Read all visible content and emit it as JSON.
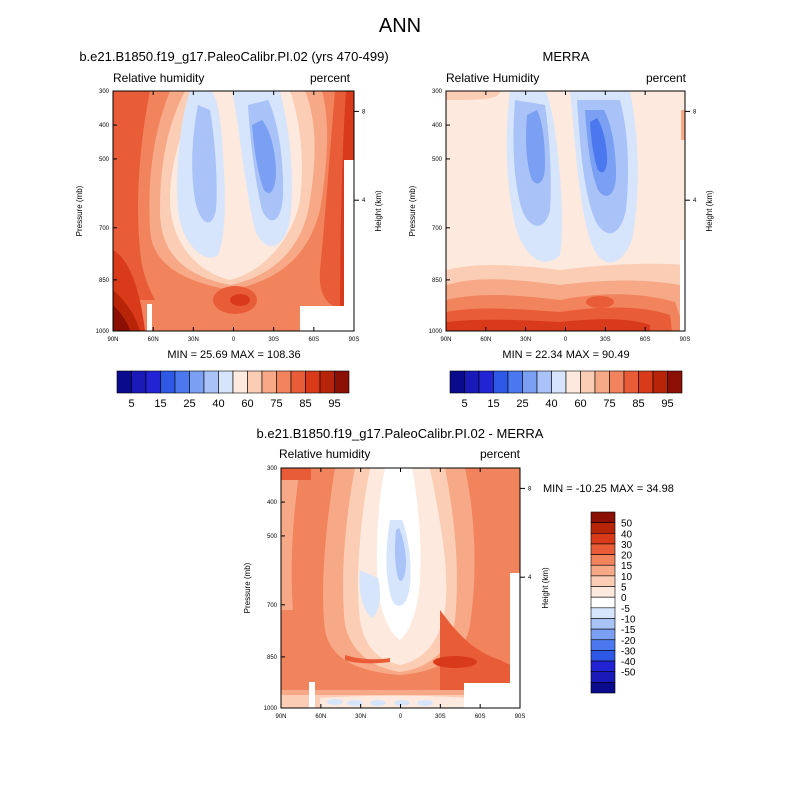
{
  "page": {
    "title": "ANN"
  },
  "colors": {
    "rh_palette": [
      "#0a0a8c",
      "#1a1ab8",
      "#2323d6",
      "#2e58e6",
      "#4b78ee",
      "#7b9ff2",
      "#a9c2f7",
      "#d6e5fb",
      "#fde9dd",
      "#fbcdb4",
      "#f7a886",
      "#f1835d",
      "#e85d38",
      "#d83a1a",
      "#b82407",
      "#8c0f05"
    ],
    "diff_palette": [
      "#0a0a8c",
      "#1a1ab8",
      "#2323d6",
      "#2e58e6",
      "#4b78ee",
      "#7b9ff2",
      "#a9c2f7",
      "#d6e5fb",
      "#ffffff",
      "#fde9dd",
      "#fbcdb4",
      "#f7a886",
      "#f1835d",
      "#e85d38",
      "#d83a1a",
      "#b82407",
      "#8c0f05"
    ]
  },
  "chart_data": [
    {
      "type": "heatmap",
      "title": "b.e21.B1850.f19_g17.PaleoCalibr.PI.02 (yrs 470-499)",
      "left_string": "Relative humidity",
      "right_string": "percent",
      "ylabel": "Pressure (mb)",
      "y2label": "Height (km)",
      "x_ticks": [
        "90N",
        "60N",
        "30N",
        "0",
        "30S",
        "60S",
        "90S"
      ],
      "y_ticks": [
        "300",
        "400",
        "500",
        "700",
        "850",
        "1000"
      ],
      "y2_ticks": [
        "8",
        "4"
      ],
      "stats": "MIN =  25.69  MAX = 108.36",
      "colorbar_labels": [
        "5",
        "15",
        "25",
        "40",
        "60",
        "75",
        "85",
        "95"
      ],
      "min": 25.69,
      "max": 108.36
    },
    {
      "type": "heatmap",
      "title": "MERRA",
      "left_string": "Relative Humidity",
      "right_string": "percent",
      "ylabel": "Pressure (mb)",
      "y2label": "Height (km)",
      "x_ticks": [
        "90N",
        "60N",
        "30N",
        "0",
        "30S",
        "60S",
        "90S"
      ],
      "y_ticks": [
        "300",
        "400",
        "500",
        "700",
        "850",
        "1000"
      ],
      "y2_ticks": [
        "8",
        "4"
      ],
      "stats": "MIN =  22.34  MAX =  90.49",
      "colorbar_labels": [
        "5",
        "15",
        "25",
        "40",
        "60",
        "75",
        "85",
        "95"
      ],
      "min": 22.34,
      "max": 90.49
    },
    {
      "type": "heatmap",
      "title": "b.e21.B1850.f19_g17.PaleoCalibr.PI.02 - MERRA",
      "left_string": "Relative humidity",
      "right_string": "percent",
      "ylabel": "Pressure (mb)",
      "y2label": "Height (km)",
      "x_ticks": [
        "90N",
        "60N",
        "30N",
        "0",
        "30S",
        "60S",
        "90S"
      ],
      "y_ticks": [
        "300",
        "400",
        "500",
        "700",
        "850",
        "1000"
      ],
      "y2_ticks": [
        "8",
        "4"
      ],
      "stats": "MIN = -10.25  MAX =  34.98",
      "colorbar_labels": [
        "50",
        "40",
        "30",
        "20",
        "15",
        "10",
        "5",
        "0",
        "-5",
        "-10",
        "-15",
        "-20",
        "-30",
        "-40",
        "-50"
      ],
      "min": -10.25,
      "max": 34.98
    }
  ]
}
